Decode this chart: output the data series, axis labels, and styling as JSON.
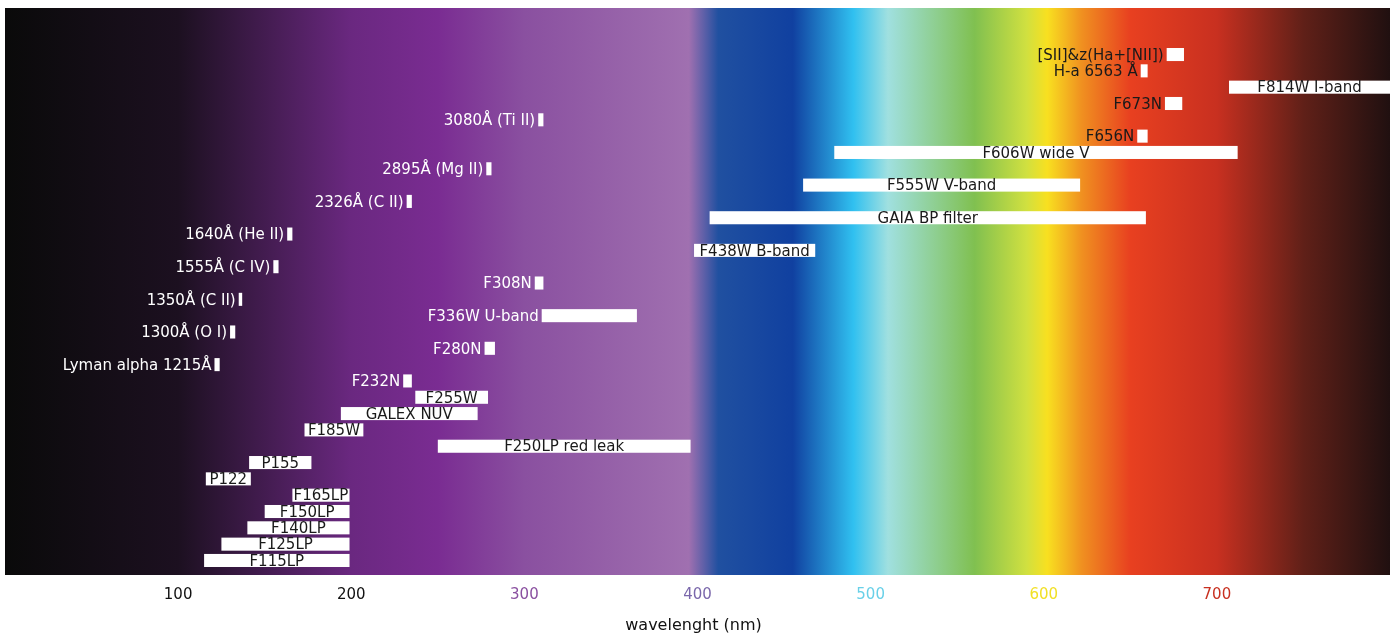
{
  "chart_data": {
    "type": "bar",
    "orientation": "horizontal",
    "xlabel": "wavelenght (nm)",
    "xlim": [
      0,
      800
    ],
    "xticks": [
      100,
      200,
      300,
      400,
      500,
      600,
      700
    ],
    "grid": false,
    "categories": [
      "[SII]&z(Ha+[NII])",
      "H-a 6563 Å",
      "F814W I-band",
      "F673N",
      "3080Å (Ti II)",
      "F656N",
      "F606W wide V",
      "2895Å (Mg II)",
      "F555W V-band",
      "2326Å (C II)",
      "GAIA BP filter",
      "1640Å (He II)",
      "F438W B-band",
      "1555Å (C IV)",
      "F308N",
      "1350Å (C II)",
      "F336W U-band",
      "1300Å (O I)",
      "F280N",
      "Lyman alpha 1215Å",
      "F232N",
      "F255W",
      "GALEX NUV",
      "F185W",
      "F250LP red leak",
      "P155",
      "P122",
      "F165LP",
      "F150LP",
      "F140LP",
      "F125LP",
      "F115LP"
    ],
    "base": [
      671,
      656,
      707,
      670,
      308,
      654,
      479,
      278,
      461,
      232,
      407,
      163,
      398,
      155,
      306,
      135,
      310,
      130,
      277,
      121,
      230,
      237,
      194,
      173,
      250,
      141,
      116,
      166,
      150,
      140,
      125,
      115
    ],
    "values": [
      10,
      4,
      93,
      10,
      3,
      6,
      233,
      3,
      160,
      3,
      252,
      3,
      70,
      3,
      5,
      2,
      55,
      3,
      6,
      3,
      5,
      42,
      79,
      34,
      146,
      36,
      26,
      33,
      49,
      59,
      74,
      84
    ],
    "color": "#ffffff"
  }
}
